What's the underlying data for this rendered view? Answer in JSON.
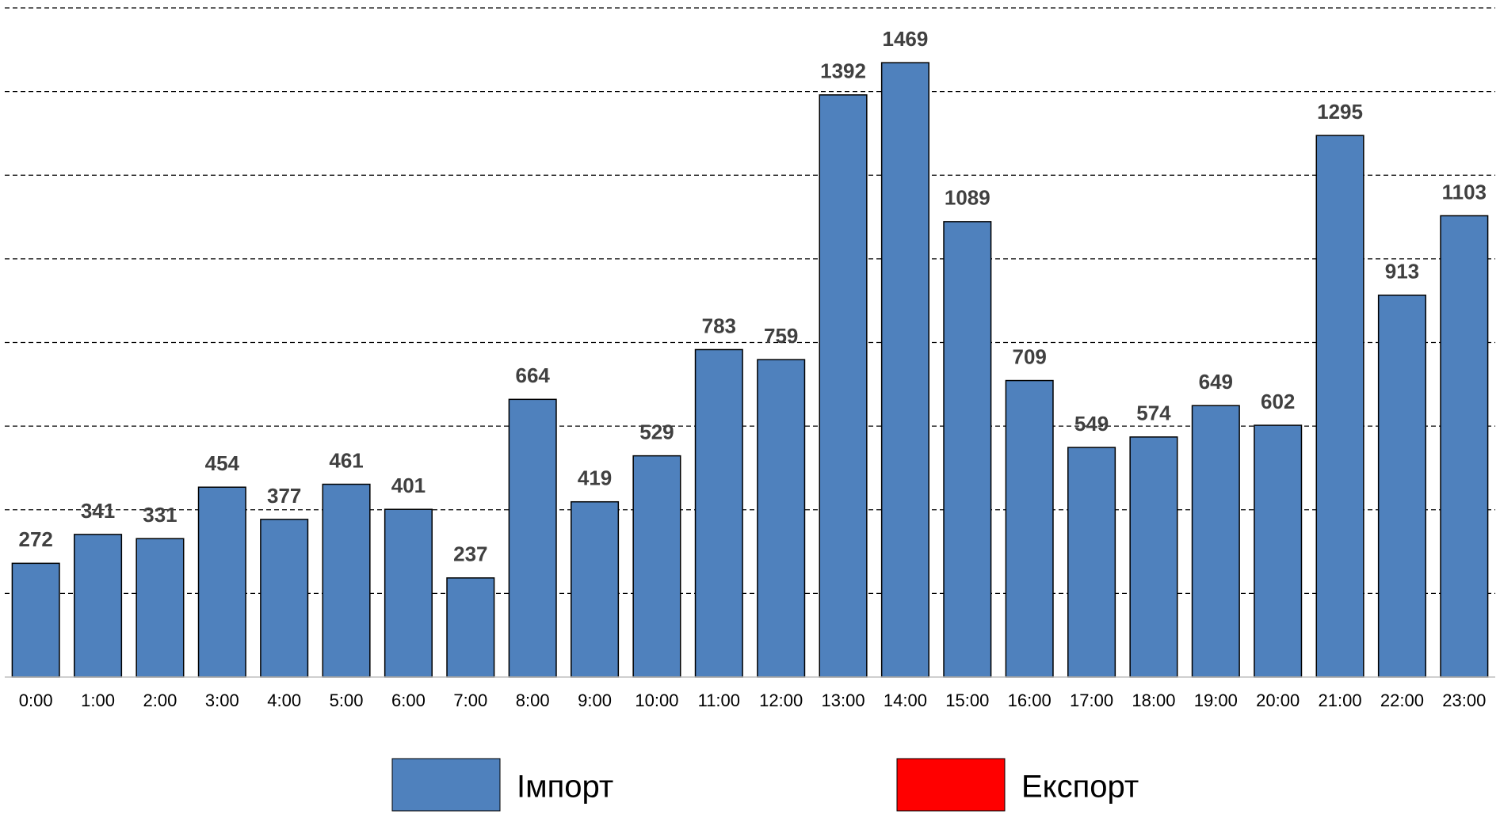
{
  "chart_data": {
    "type": "bar",
    "categories": [
      "0:00",
      "1:00",
      "2:00",
      "3:00",
      "4:00",
      "5:00",
      "6:00",
      "7:00",
      "8:00",
      "9:00",
      "10:00",
      "11:00",
      "12:00",
      "13:00",
      "14:00",
      "15:00",
      "16:00",
      "17:00",
      "18:00",
      "19:00",
      "20:00",
      "21:00",
      "22:00",
      "23:00"
    ],
    "series": [
      {
        "name": "Імпорт",
        "color": "#4f81bd",
        "values": [
          272,
          341,
          331,
          454,
          377,
          461,
          401,
          237,
          664,
          419,
          529,
          783,
          759,
          1392,
          1469,
          1089,
          709,
          549,
          574,
          649,
          602,
          1295,
          913,
          1103
        ]
      },
      {
        "name": "Експорт",
        "color": "#ff0000",
        "values": [
          null,
          null,
          null,
          null,
          null,
          null,
          null,
          null,
          null,
          null,
          null,
          null,
          null,
          null,
          null,
          null,
          null,
          null,
          null,
          null,
          null,
          null,
          null,
          null
        ]
      }
    ],
    "ylim": [
      0,
      1600
    ],
    "yticks": [
      0,
      200,
      400,
      600,
      800,
      1000,
      1200,
      1400,
      1600
    ],
    "grid": true,
    "legend": "bottom"
  }
}
